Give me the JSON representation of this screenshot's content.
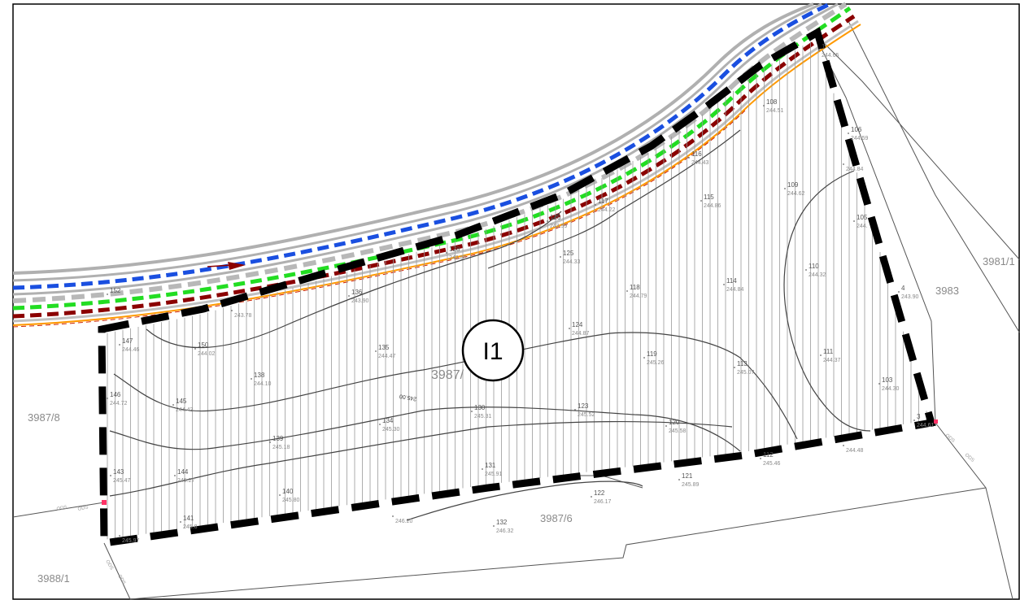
{
  "colors": {
    "boundary": "#000000",
    "road_edge": "#b0b0b0",
    "utility_blue": "#1a4fe0",
    "utility_green": "#22dd22",
    "utility_darkred": "#8b0000",
    "utility_orange": "#ff9900",
    "contour": "#444444",
    "hatch": "#9a9a9a",
    "parcel_line": "#555555",
    "point_marker": "#ff3366"
  },
  "zone_label": "I1",
  "contour_label": "245.00",
  "parcel_labels": [
    "3981/1",
    "3983",
    "3987/8",
    "3987/",
    "3987/6",
    "3988/1"
  ],
  "points": [
    {
      "n": "108",
      "z": "244.51"
    },
    {
      "n": "106",
      "z": "244.59"
    },
    {
      "n": "116",
      "z": "244.43"
    },
    {
      "n": "109",
      "z": "244.62"
    },
    {
      "n": "117",
      "z": "244.22"
    },
    {
      "n": "115",
      "z": "244.86"
    },
    {
      "n": "105",
      "z": "244."
    },
    {
      "n": "126",
      "z": "243.99"
    },
    {
      "n": "128",
      "z": "243.80"
    },
    {
      "n": "125",
      "z": "244.33"
    },
    {
      "n": "110",
      "z": "244.32"
    },
    {
      "n": "136",
      "z": "243.90"
    },
    {
      "n": "118",
      "z": "244.79"
    },
    {
      "n": "114",
      "z": "244.84"
    },
    {
      "n": "4",
      "z": "243.90"
    },
    {
      "n": "152",
      "z": ""
    },
    {
      "n": "",
      "z": "243.78"
    },
    {
      "n": "147",
      "z": "244.46"
    },
    {
      "n": "150",
      "z": "244.02"
    },
    {
      "n": "124",
      "z": "244.87"
    },
    {
      "n": "135",
      "z": "244.47"
    },
    {
      "n": "119",
      "z": "245.26"
    },
    {
      "n": "111",
      "z": "244.37"
    },
    {
      "n": "138",
      "z": "244.10"
    },
    {
      "n": "113",
      "z": "245.07"
    },
    {
      "n": "103",
      "z": "244.30"
    },
    {
      "n": "146",
      "z": "244.72"
    },
    {
      "n": "145",
      "z": "244.42"
    },
    {
      "n": "130",
      "z": "245.31"
    },
    {
      "n": "123",
      "z": "245.52"
    },
    {
      "n": "134",
      "z": "245.30"
    },
    {
      "n": "120",
      "z": "245.58"
    },
    {
      "n": "139",
      "z": "245.18"
    },
    {
      "n": "",
      "z": "244.48"
    },
    {
      "n": "112",
      "z": "245.46"
    },
    {
      "n": "143",
      "z": "245.47"
    },
    {
      "n": "144",
      "z": "245.27"
    },
    {
      "n": "131",
      "z": "245.91"
    },
    {
      "n": "121",
      "z": "245.89"
    },
    {
      "n": "140",
      "z": "245.80"
    },
    {
      "n": "122",
      "z": "246.17"
    },
    {
      "n": "",
      "z": "246.20"
    },
    {
      "n": "141",
      "z": "245.8"
    },
    {
      "n": "132",
      "z": "246.32"
    },
    {
      "n": "",
      "z": "245.97"
    },
    {
      "n": "",
      "z": "244.84"
    },
    {
      "n": "3",
      "z": "244.61"
    },
    {
      "n": "1",
      "z": "244.65"
    }
  ],
  "road_labels": [
    "ODS",
    "ODS",
    "ODS",
    "ODS",
    "ODS",
    "ODS"
  ]
}
